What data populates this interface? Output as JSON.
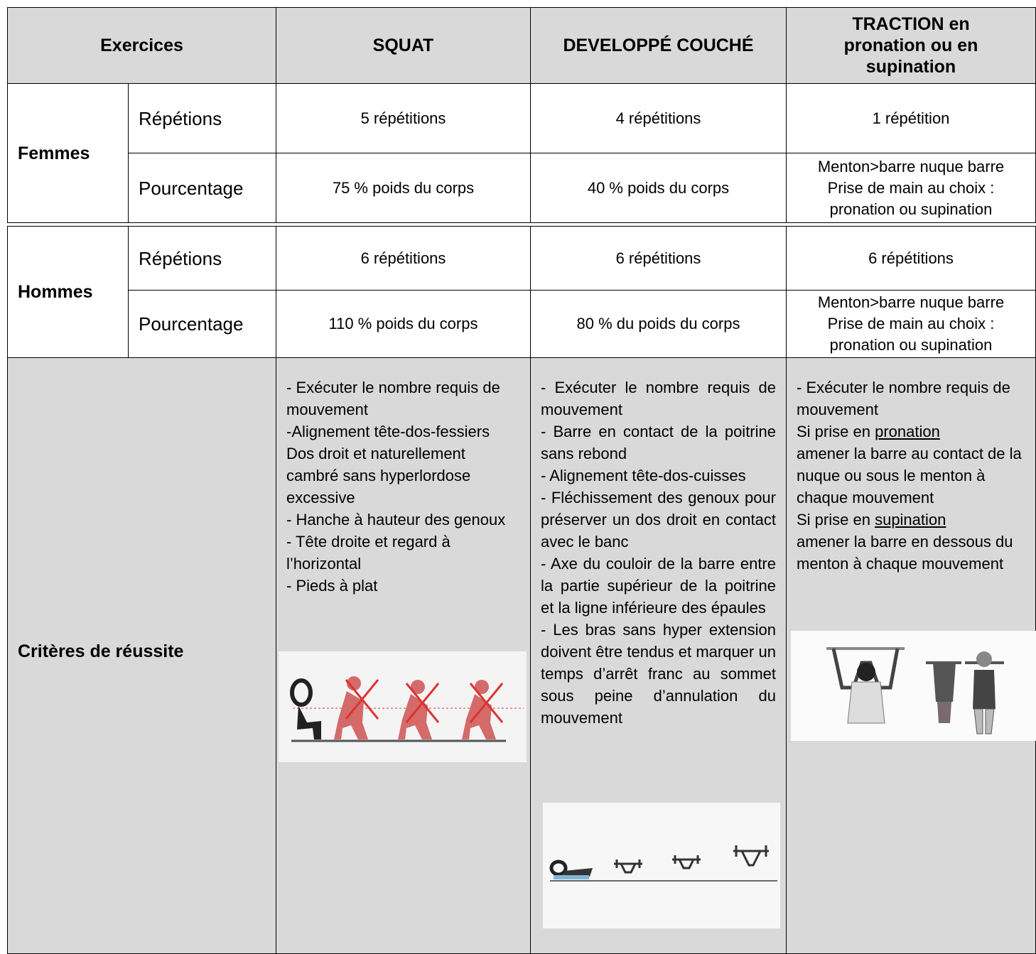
{
  "table": {
    "header": {
      "label": "Exercices",
      "columns": [
        "SQUAT",
        "DEVELOPPÉ COUCHÉ",
        "TRACTION en pronation ou en supination"
      ]
    },
    "groups": [
      {
        "name": "Femmes",
        "rows": [
          {
            "label": "Répétions",
            "cells": [
              "5 répétitions",
              "4 répétitions",
              "1 répétition"
            ]
          },
          {
            "label": "Pourcentage",
            "cells": [
              "75 % poids du corps",
              "40 % poids du corps",
              [
                "Menton>barre nuque barre",
                "Prise de main au choix :",
                "pronation ou supination"
              ]
            ]
          }
        ]
      },
      {
        "name": "Hommes",
        "rows": [
          {
            "label": "Répétions",
            "cells": [
              "6 répétitions",
              "6 répétitions",
              "6 répétitions"
            ]
          },
          {
            "label": "Pourcentage",
            "cells": [
              "110 % poids du corps",
              "80 % du poids du corps",
              [
                "Menton>barre nuque barre",
                "Prise de main au choix :",
                "pronation ou supination"
              ]
            ]
          }
        ]
      }
    ],
    "criteria": {
      "label": "Critères de réussite",
      "columns": [
        [
          "- Exécuter le nombre requis de mouvement",
          "-Alignement tête-dos-fessiers",
          "Dos droit et naturellement cambré sans hyperlordose excessive",
          "- Hanche à hauteur des genoux",
          "- Tête droite et regard à l’horizontal",
          "- Pieds à plat"
        ],
        [
          "- Exécuter le nombre requis de mouvement",
          "- Barre en contact de la poitrine sans rebond",
          "- Alignement tête-dos-cuisses",
          "- Fléchissement des genoux pour préserver un dos droit en contact avec le banc",
          "- Axe du couloir de la barre entre la partie supérieur de la poitrine et la ligne inférieure des épaules",
          "- Les bras sans hyper extension doivent être tendus et marquer un temps d’arrêt franc au sommet sous peine d’annulation du mouvement"
        ],
        [
          "- Exécuter le nombre requis de mouvement",
          {
            "prefix": "Si prise en",
            "underlined": "pronation",
            "rest": "amener la barre au contact de la nuque ou sous le menton à chaque mouvement"
          },
          {
            "prefix": "Si prise en",
            "underlined": "supination",
            "rest": "amener la barre en dessous du menton à chaque mouvement"
          }
        ]
      ]
    }
  }
}
